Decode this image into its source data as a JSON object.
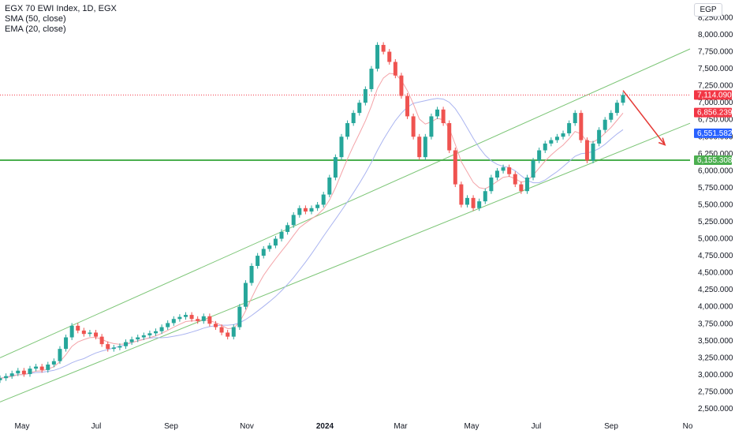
{
  "legend": {
    "title": "EGX 70 EWI Index, 1D, EGX",
    "sma": "SMA (50, close)",
    "ema": "EMA (20, close)"
  },
  "currency": "EGP",
  "colors": {
    "up": "#26a69a",
    "down": "#ef5350",
    "sma": "#aab4f0",
    "ema": "#f4a3a8",
    "channel": "#7cc576",
    "support": "#4caf50",
    "arrow": "#e53935",
    "last_price_bg": "#f23645",
    "sma_tag_bg": "#2962ff",
    "support_tag_bg": "#4caf50",
    "ema_tag_bg": "#f23645"
  },
  "chart_data": {
    "type": "candlestick",
    "y_ticks": [
      "2,500.000",
      "2,750.000",
      "3,000.000",
      "3,250.000",
      "3,500.000",
      "3,750.000",
      "4,000.000",
      "4,250.000",
      "4,500.000",
      "4,750.000",
      "5,000.000",
      "5,250.000",
      "5,500.000",
      "5,750.000",
      "6,000.000",
      "6,250.000",
      "6,500.000",
      "6,750.000",
      "7,000.000",
      "7,250.000",
      "7,500.000",
      "7,750.000",
      "8,000.000",
      "8,250.000"
    ],
    "y_tick_values": [
      2500,
      2750,
      3000,
      3250,
      3500,
      3750,
      4000,
      4250,
      4500,
      4750,
      5000,
      5250,
      5500,
      5750,
      6000,
      6250,
      6500,
      6750,
      7000,
      7250,
      7500,
      7750,
      8000,
      8250
    ],
    "x_ticks": [
      "May",
      "Jul",
      "Sep",
      "Nov",
      "2024",
      "Mar",
      "May",
      "Jul",
      "Sep",
      "No"
    ],
    "price_tags": {
      "last_price": "7,114.090",
      "ema": "6,856.239",
      "sma": "6,551.582",
      "support": "6,155.308"
    },
    "price_tag_values": {
      "last_price": 7114.09,
      "ema": 6856.239,
      "sma": 6551.582,
      "support": 6155.308
    },
    "closes": [
      2950,
      2980,
      3020,
      3060,
      3010,
      3090,
      3120,
      3070,
      3150,
      3200,
      3380,
      3550,
      3720,
      3650,
      3600,
      3620,
      3560,
      3450,
      3380,
      3400,
      3420,
      3480,
      3520,
      3550,
      3580,
      3610,
      3640,
      3700,
      3760,
      3820,
      3850,
      3880,
      3820,
      3790,
      3860,
      3750,
      3700,
      3620,
      3560,
      3700,
      4000,
      4350,
      4600,
      4750,
      4850,
      4900,
      5000,
      5100,
      5200,
      5350,
      5450,
      5400,
      5450,
      5500,
      5650,
      5900,
      6200,
      6500,
      6700,
      6850,
      7000,
      7200,
      7500,
      7850,
      7750,
      7600,
      7400,
      7100,
      6800,
      6500,
      6200,
      6500,
      6800,
      6900,
      6700,
      6300,
      5800,
      5500,
      5600,
      5450,
      5550,
      5700,
      5900,
      6000,
      6050,
      5950,
      5800,
      5700,
      5900,
      6150,
      6300,
      6400,
      6450,
      6500,
      6550,
      6700,
      6850,
      6450,
      6150,
      6400,
      6600,
      6750,
      6850,
      7000,
      7114
    ],
    "sma50_values": "computed from closes (50-day simple moving average)",
    "ema20_values": "computed from closes (20-day exponential moving average)",
    "channel_upper": {
      "start": [
        0,
        3250
      ],
      "end": [
        104,
        7350
      ]
    },
    "channel_lower": {
      "start": [
        0,
        2600
      ],
      "end": [
        104,
        6300
      ]
    },
    "support_level": 6155.308,
    "arrow": {
      "from": [
        104,
        7180
      ],
      "to": [
        111,
        6380
      ]
    },
    "grid": false
  }
}
